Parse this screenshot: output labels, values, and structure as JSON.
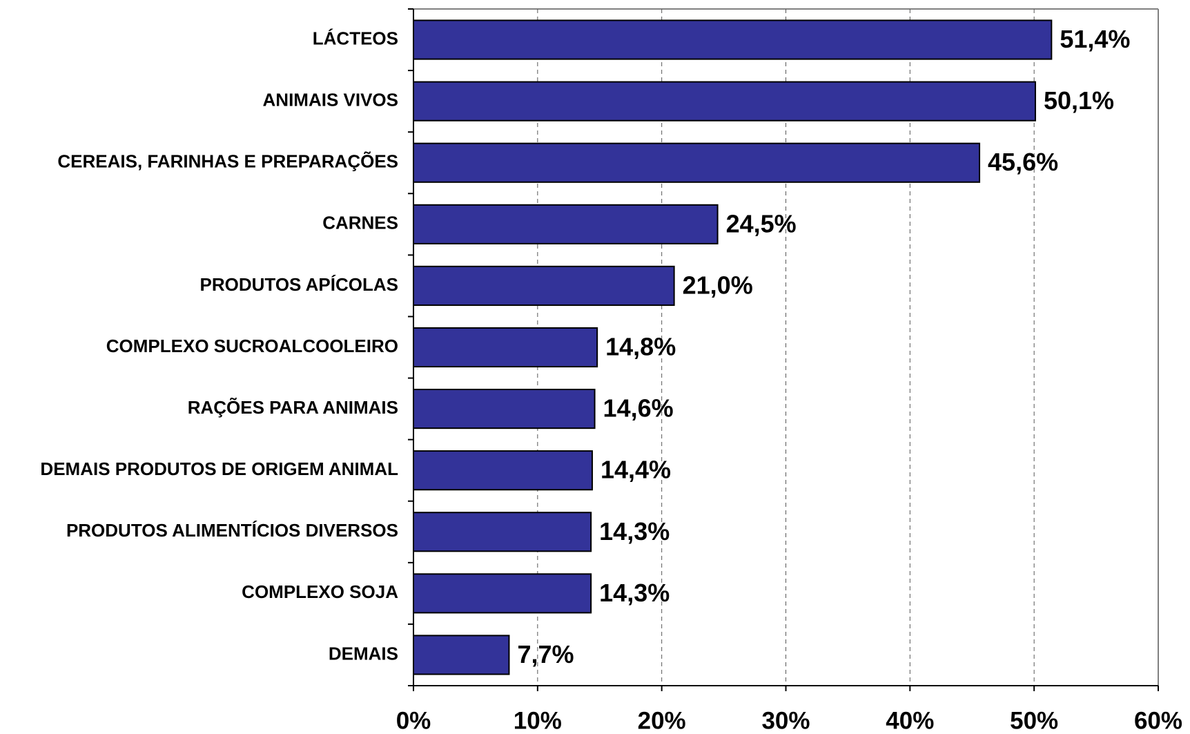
{
  "chart_data": {
    "type": "bar",
    "orientation": "horizontal",
    "categories": [
      "LÁCTEOS",
      "ANIMAIS VIVOS",
      "CEREAIS, FARINHAS E PREPARAÇÕES",
      "CARNES",
      "PRODUTOS APÍCOLAS",
      "COMPLEXO SUCROALCOOLEIRO",
      "RAÇÕES PARA ANIMAIS",
      "DEMAIS PRODUTOS DE ORIGEM ANIMAL",
      "PRODUTOS ALIMENTÍCIOS DIVERSOS",
      "COMPLEXO SOJA",
      "DEMAIS"
    ],
    "values": [
      51.4,
      50.1,
      45.6,
      24.5,
      21.0,
      14.8,
      14.6,
      14.4,
      14.3,
      14.3,
      7.7
    ],
    "value_labels": [
      "51,4%",
      "50,1%",
      "45,6%",
      "24,5%",
      "21,0%",
      "14,8%",
      "14,6%",
      "14,4%",
      "14,3%",
      "14,3%",
      "7,7%"
    ],
    "color": "#333399",
    "xlim": [
      0,
      60
    ],
    "xticks": [
      {
        "value": 0,
        "label": "0%"
      },
      {
        "value": 10,
        "label": "10%"
      },
      {
        "value": 20,
        "label": "20%"
      },
      {
        "value": 30,
        "label": "30%"
      },
      {
        "value": 40,
        "label": "40%"
      },
      {
        "value": 50,
        "label": "50%"
      },
      {
        "value": 60,
        "label": "60%"
      }
    ],
    "grid": true
  }
}
